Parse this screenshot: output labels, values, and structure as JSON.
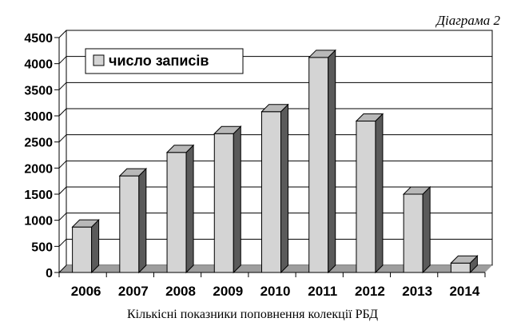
{
  "corner_label": "Діаграма 2",
  "caption": "Кількісні показники поповнення колекції РБД",
  "colors": {
    "bar_front": "#d4d4d4",
    "bar_side": "#5a5a5a",
    "bar_top": "#b8b8b8",
    "floor": "#9e9e9e",
    "axis": "#000000"
  },
  "chart_data": {
    "type": "bar",
    "style": "3d-columns",
    "categories": [
      "2006",
      "2007",
      "2008",
      "2009",
      "2010",
      "2011",
      "2012",
      "2013",
      "2014"
    ],
    "series": [
      {
        "name": "число записів",
        "values": [
          870,
          1850,
          2300,
          2660,
          3080,
          4120,
          2900,
          1500,
          180
        ]
      }
    ],
    "ylim": [
      0,
      4500
    ],
    "yticks": [
      0,
      500,
      1000,
      1500,
      2000,
      2500,
      3000,
      3500,
      4000,
      4500
    ],
    "grid": true,
    "legend": "top-left"
  }
}
